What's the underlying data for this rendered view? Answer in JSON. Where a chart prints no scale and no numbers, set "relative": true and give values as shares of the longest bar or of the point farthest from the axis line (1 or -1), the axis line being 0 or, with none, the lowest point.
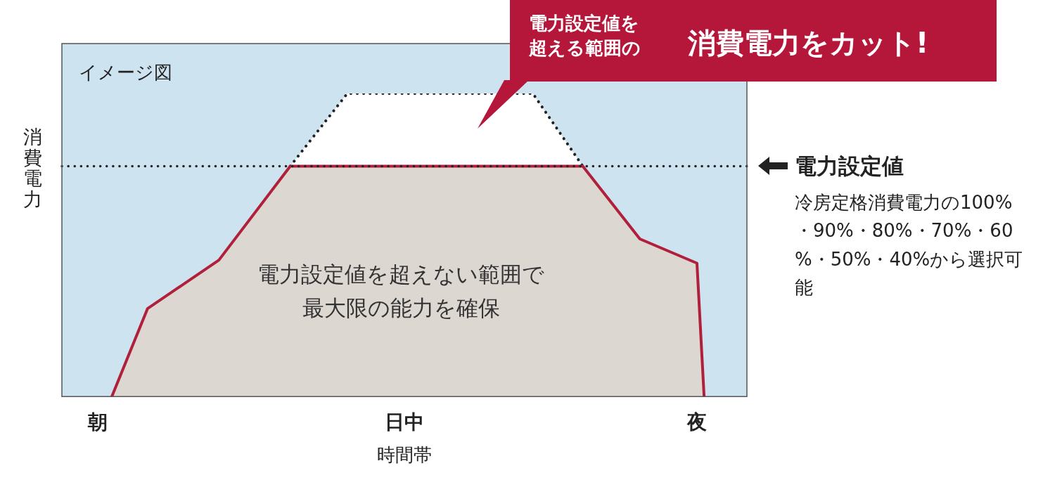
{
  "chart_data": {
    "type": "area",
    "relative": true,
    "legend": false,
    "marker": "none",
    "xlabel": "時間帯",
    "ylabel": "消費電力",
    "categories": [
      null,
      null,
      null,
      null,
      null,
      "朝",
      null,
      null,
      null,
      null,
      null,
      null,
      null,
      null,
      null,
      null,
      null,
      null,
      null,
      null,
      null,
      null,
      null,
      null,
      null,
      null,
      null,
      null,
      null,
      null,
      null,
      null,
      null,
      null,
      null,
      null,
      null,
      null,
      null,
      null,
      null,
      null,
      null,
      null,
      null,
      null,
      null,
      null,
      "日中",
      null,
      null,
      null,
      null,
      null,
      null,
      null,
      null,
      null,
      null,
      null,
      null,
      null,
      null,
      null,
      null,
      null,
      null,
      null,
      null,
      null,
      null,
      null,
      null,
      null,
      null,
      null,
      null,
      null,
      null,
      null,
      null,
      null,
      null,
      null,
      null,
      null,
      null,
      null,
      null,
      "夜",
      null,
      null,
      null,
      null,
      null,
      null,
      null
    ],
    "series": [
      {
        "type": "area",
        "color": "#b0203a",
        "line_style": "solid",
        "values": [
          null,
          null,
          null,
          null,
          null,
          null,
          null,
          0,
          null,
          null,
          null,
          null,
          0.29,
          null,
          null,
          null,
          null,
          null,
          null,
          null,
          null,
          null,
          0.45,
          null,
          null,
          null,
          null,
          null,
          null,
          null,
          null,
          null,
          0.76,
          null,
          null,
          null,
          null,
          null,
          null,
          null,
          null,
          null,
          null,
          null,
          null,
          null,
          null,
          null,
          null,
          null,
          null,
          null,
          null,
          null,
          null,
          null,
          null,
          null,
          null,
          null,
          null,
          null,
          null,
          null,
          null,
          null,
          null,
          null,
          null,
          null,
          null,
          null,
          null,
          0.76,
          null,
          null,
          null,
          null,
          null,
          null,
          null,
          0.52,
          null,
          null,
          null,
          null,
          null,
          null,
          null,
          0.44,
          0,
          null,
          null,
          null,
          null,
          null,
          null
        ]
      },
      {
        "type": "area",
        "color": "#222222",
        "line_style": "dotted",
        "values": [
          null,
          null,
          null,
          null,
          null,
          null,
          null,
          null,
          null,
          null,
          null,
          null,
          null,
          null,
          null,
          null,
          null,
          null,
          null,
          null,
          null,
          null,
          null,
          null,
          null,
          null,
          null,
          null,
          null,
          null,
          null,
          null,
          0.76,
          null,
          null,
          null,
          null,
          null,
          null,
          null,
          1,
          null,
          null,
          null,
          null,
          null,
          null,
          null,
          null,
          null,
          null,
          null,
          null,
          null,
          null,
          null,
          null,
          null,
          null,
          null,
          null,
          null,
          null,
          null,
          null,
          null,
          1,
          null,
          null,
          null,
          null,
          null,
          null,
          0.76,
          null,
          null,
          null,
          null,
          null,
          null,
          null,
          null,
          null,
          null,
          null,
          null,
          null,
          null,
          null,
          null,
          null,
          null,
          null,
          null,
          null,
          null,
          null
        ]
      }
    ],
    "ref_lines": [
      {
        "axis": "y",
        "value": 0.76,
        "label": "電力設定値",
        "line_style": "dotted",
        "color": "#222222"
      }
    ],
    "annotations": [
      "イメージ図",
      "電力設定値を超える範囲の",
      "消費電力をカット!",
      "電力設定値を超えない範囲で最大限の能力を確保",
      "冷房定格消費電力の100%・90%・80%・70%・60%・50%・40%から選択可能"
    ]
  }
}
